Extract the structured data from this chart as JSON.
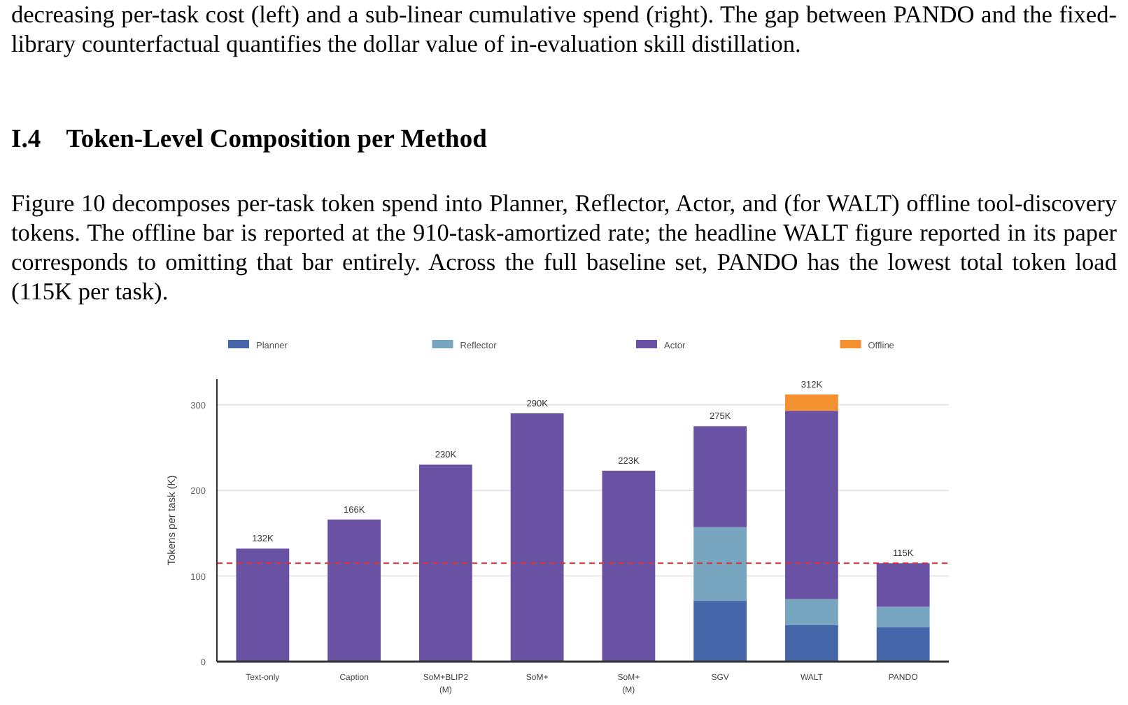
{
  "chart_data": {
    "type": "bar",
    "stacked": true,
    "title": "I.4    Token-Level Composition per Method",
    "annotations": [
      "decreasing per-task cost (left) and a sub-linear cumulative spend (right). The gap between PANDO and the fixed-library counterfactual quantifies the dollar value of in-evaluation skill distillation.",
      "Figure 10 decomposes per-task token spend into Planner, Reflector, Actor, and (for WALT) offline tool-discovery tokens. The offline bar is reported at the 910-task-amortized rate; the headline WALT figure reported in its paper corresponds to omitting that bar entirely.  Across the full baseline set, PANDO has the lowest total token load (115K per task)."
    ],
    "ylabel": "Tokens per task (K)",
    "categories": [
      "Text-only",
      "Caption",
      "SoM+BLIP2 (M)",
      "SoM+",
      "SoM+ (M)",
      "SGV",
      "WALT",
      "PANDO"
    ],
    "series": [
      {
        "name": "Planner",
        "color": "#4466a9",
        "values": [
          0,
          0,
          0,
          0,
          0,
          71,
          43,
          40
        ]
      },
      {
        "name": "Reflector",
        "color": "#78a6c1",
        "values": [
          0,
          0,
          0,
          0,
          0,
          86,
          30,
          24
        ]
      },
      {
        "name": "Actor",
        "color": "#6951a3",
        "values": [
          132,
          166,
          230,
          290,
          223,
          118,
          220,
          51
        ]
      },
      {
        "name": "Offline",
        "color": "#f39130",
        "values": [
          0,
          0,
          0,
          0,
          0,
          0,
          19,
          0
        ]
      }
    ],
    "totals": [
      "132K",
      "166K",
      "230K",
      "290K",
      "223K",
      "275K",
      "312K",
      "115K"
    ],
    "ylim": [
      0,
      330
    ],
    "yticks": [
      0,
      100,
      200,
      300
    ],
    "grid": "y",
    "legend": "top",
    "ref_lines": [
      {
        "axis": "y",
        "value": 115,
        "color": "#d9343a",
        "line_style": "dashed"
      }
    ]
  }
}
